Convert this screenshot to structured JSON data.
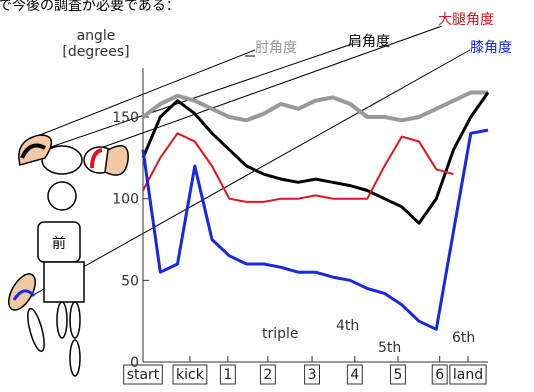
{
  "caption": "で今後の調査が必要である：",
  "chart_data": {
    "type": "line",
    "ylabel": "angle\n[degrees]",
    "x": [
      0,
      5,
      10,
      15,
      20,
      25,
      30,
      35,
      40,
      45,
      50,
      55,
      60,
      65,
      70,
      75,
      80,
      85,
      90,
      95,
      100
    ],
    "xlim": [
      0,
      100
    ],
    "xticks": [
      {
        "value": 0,
        "label": "start"
      },
      {
        "value": 13.6,
        "label": "kick"
      },
      {
        "value": 24.6,
        "label": "1"
      },
      {
        "value": 36.2,
        "label": "2"
      },
      {
        "value": 49,
        "label": "3"
      },
      {
        "value": 61.4,
        "label": "4"
      },
      {
        "value": 73.9,
        "label": "5"
      },
      {
        "value": 86,
        "label": "6"
      },
      {
        "value": 94.2,
        "label": "land"
      }
    ],
    "ylim": [
      0,
      180
    ],
    "yticks": [
      0,
      50,
      100,
      150
    ],
    "series": [
      {
        "name": "肘角度",
        "color": "#999999",
        "values": [
          150,
          158,
          163,
          160,
          155,
          150,
          148,
          152,
          158,
          155,
          160,
          162,
          158,
          150,
          150,
          148,
          150,
          155,
          160,
          165,
          165
        ]
      },
      {
        "name": "肩角度",
        "color": "#000000",
        "values": [
          125,
          150,
          160,
          152,
          140,
          130,
          120,
          115,
          112,
          110,
          112,
          110,
          108,
          105,
          100,
          95,
          85,
          100,
          130,
          150,
          165
        ]
      },
      {
        "name": "大腿角度",
        "color": "#e0141e",
        "values": [
          105,
          125,
          140,
          135,
          120,
          100,
          98,
          98,
          100,
          100,
          102,
          100,
          100,
          100,
          120,
          138,
          135,
          118,
          115,
          null,
          null
        ]
      },
      {
        "name": "膝角度",
        "color": "#1428e6",
        "values": [
          130,
          55,
          60,
          120,
          75,
          65,
          60,
          60,
          58,
          55,
          55,
          52,
          50,
          45,
          42,
          35,
          25,
          20,
          80,
          140,
          142
        ]
      }
    ],
    "annotations": [
      "前",
      "triple",
      "4th",
      "5th",
      "6th"
    ]
  }
}
